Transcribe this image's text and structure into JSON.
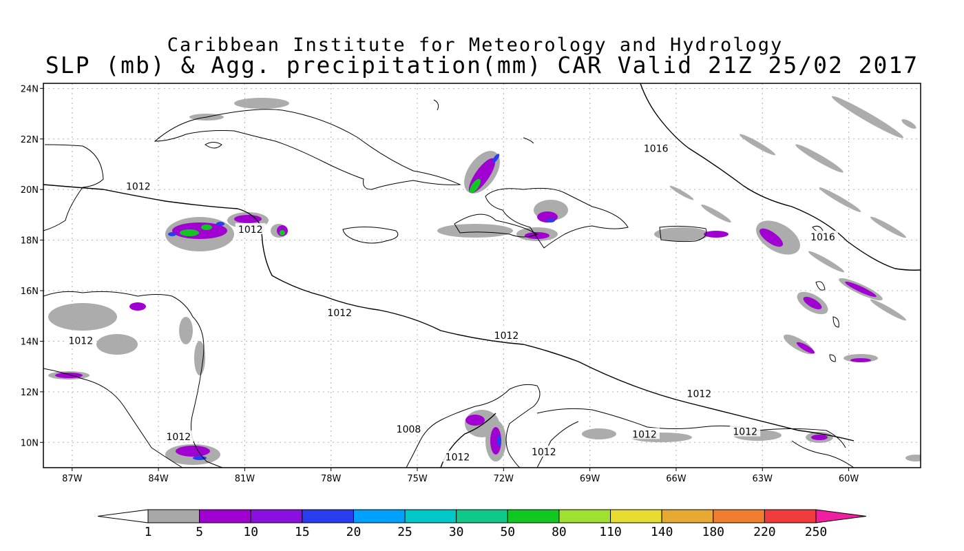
{
  "title": {
    "line1": "Caribbean Institute for Meteorology and Hydrology",
    "line2": "SLP (mb) & Agg. precipitation(mm) CAR Valid 21Z 25/02 2017"
  },
  "axes": {
    "lat_labels": [
      "24N",
      "22N",
      "20N",
      "18N",
      "16N",
      "14N",
      "12N",
      "10N"
    ],
    "lon_labels": [
      "87W",
      "84W",
      "81W",
      "78W",
      "75W",
      "72W",
      "69W",
      "66W",
      "63W",
      "60W"
    ],
    "lat_range": [
      9,
      24.2
    ],
    "lon_range": [
      -88,
      -57.5
    ],
    "grid": "dotted"
  },
  "isobar_labels": [
    {
      "text": "1012",
      "lon": -84.7,
      "lat": 20.1
    },
    {
      "text": "1012",
      "lon": -80.8,
      "lat": 18.4
    },
    {
      "text": "1012",
      "lon": -77.7,
      "lat": 15.1
    },
    {
      "text": "1012",
      "lon": -71.9,
      "lat": 14.2
    },
    {
      "text": "1012",
      "lon": -65.2,
      "lat": 11.9
    },
    {
      "text": "1012",
      "lon": -63.6,
      "lat": 10.4
    },
    {
      "text": "1012",
      "lon": -67.1,
      "lat": 10.3
    },
    {
      "text": "1012",
      "lon": -70.6,
      "lat": 9.6
    },
    {
      "text": "1012",
      "lon": -73.6,
      "lat": 9.4
    },
    {
      "text": "1008",
      "lon": -75.3,
      "lat": 10.5
    },
    {
      "text": "1012",
      "lon": -86.7,
      "lat": 14.0
    },
    {
      "text": "1012",
      "lon": -83.3,
      "lat": 10.2
    },
    {
      "text": "1016",
      "lon": -66.7,
      "lat": 21.6
    },
    {
      "text": "1016",
      "lon": -60.9,
      "lat": 18.1
    }
  ],
  "colorbar": {
    "labels": [
      "1",
      "5",
      "10",
      "15",
      "20",
      "25",
      "30",
      "50",
      "80",
      "110",
      "140",
      "180",
      "220",
      "250"
    ],
    "colors": [
      "#a8a8a8",
      "#a000d0",
      "#8a10e0",
      "#2a3cf0",
      "#00a0ff",
      "#00c8c8",
      "#10c888",
      "#10c820",
      "#a0e030",
      "#e6dc32",
      "#e6aa32",
      "#f07e2e",
      "#f03c3c",
      "#f01ea0"
    ],
    "under_color": "#ffffff"
  }
}
